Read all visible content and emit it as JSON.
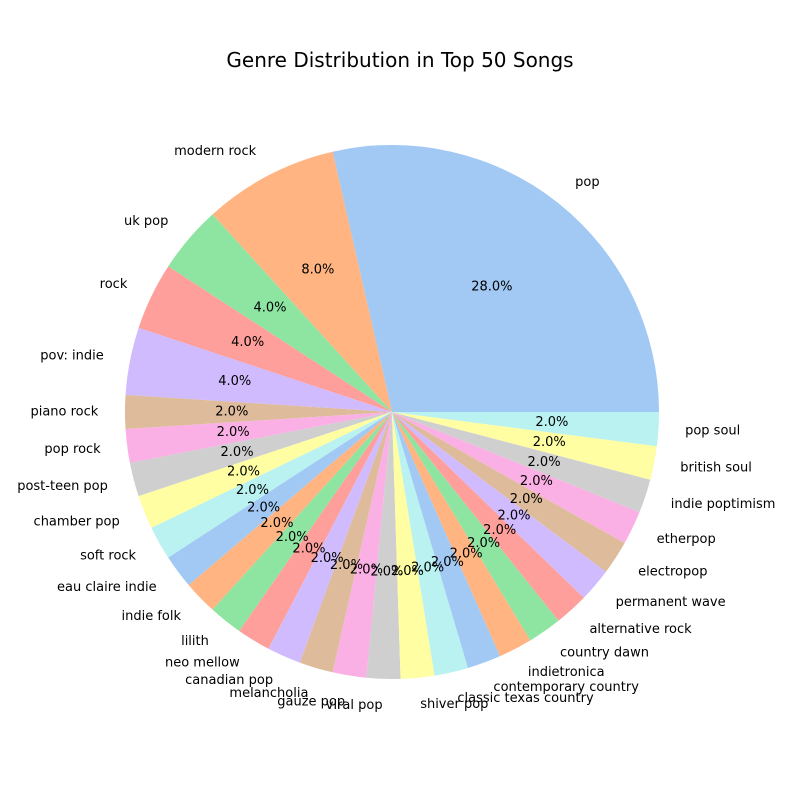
{
  "chart_data": {
    "type": "pie",
    "title": "Genre Distribution in Top 50 Songs",
    "start_angle_deg": 0,
    "direction": "counterclockwise",
    "slices": [
      {
        "label": "pop",
        "value": 28.0,
        "pct_label": "28.0%",
        "color": "#a1c9f4"
      },
      {
        "label": "modern rock",
        "value": 8.0,
        "pct_label": "8.0%",
        "color": "#ffb482"
      },
      {
        "label": "uk pop",
        "value": 4.0,
        "pct_label": "4.0%",
        "color": "#8de5a1"
      },
      {
        "label": "rock",
        "value": 4.0,
        "pct_label": "4.0%",
        "color": "#ff9f9b"
      },
      {
        "label": "pov: indie",
        "value": 4.0,
        "pct_label": "4.0%",
        "color": "#d0bbff"
      },
      {
        "label": "piano rock",
        "value": 2.0,
        "pct_label": "2.0%",
        "color": "#debb9b"
      },
      {
        "label": "pop rock",
        "value": 2.0,
        "pct_label": "2.0%",
        "color": "#fab0e4"
      },
      {
        "label": "post-teen pop",
        "value": 2.0,
        "pct_label": "2.0%",
        "color": "#cfcfcf"
      },
      {
        "label": "chamber pop",
        "value": 2.0,
        "pct_label": "2.0%",
        "color": "#fffea3"
      },
      {
        "label": "soft rock",
        "value": 2.0,
        "pct_label": "2.0%",
        "color": "#b9f2f0"
      },
      {
        "label": "eau claire indie",
        "value": 2.0,
        "pct_label": "2.0%",
        "color": "#a1c9f4"
      },
      {
        "label": "indie folk",
        "value": 2.0,
        "pct_label": "2.0%",
        "color": "#ffb482"
      },
      {
        "label": "lilith",
        "value": 2.0,
        "pct_label": "2.0%",
        "color": "#8de5a1"
      },
      {
        "label": "neo mellow",
        "value": 2.0,
        "pct_label": "2.0%",
        "color": "#ff9f9b"
      },
      {
        "label": "canadian pop",
        "value": 2.0,
        "pct_label": "2.0%",
        "color": "#d0bbff"
      },
      {
        "label": "melancholia",
        "value": 2.0,
        "pct_label": "2.0%",
        "color": "#debb9b"
      },
      {
        "label": "gauze pop",
        "value": 2.0,
        "pct_label": "2.0%",
        "color": "#fab0e4"
      },
      {
        "label": "viral pop",
        "value": 2.0,
        "pct_label": "2.0%",
        "color": "#cfcfcf"
      },
      {
        "label": "shiver pop",
        "value": 2.0,
        "pct_label": "2.0%",
        "color": "#fffea3"
      },
      {
        "label": "classic texas country",
        "value": 2.0,
        "pct_label": "2.0%",
        "color": "#b9f2f0"
      },
      {
        "label": "contemporary country",
        "value": 2.0,
        "pct_label": "2.0%",
        "color": "#a1c9f4"
      },
      {
        "label": "indietronica",
        "value": 2.0,
        "pct_label": "2.0%",
        "color": "#ffb482"
      },
      {
        "label": "country dawn",
        "value": 2.0,
        "pct_label": "2.0%",
        "color": "#8de5a1"
      },
      {
        "label": "alternative rock",
        "value": 2.0,
        "pct_label": "2.0%",
        "color": "#ff9f9b"
      },
      {
        "label": "permanent wave",
        "value": 2.0,
        "pct_label": "2.0%",
        "color": "#d0bbff"
      },
      {
        "label": "electropop",
        "value": 2.0,
        "pct_label": "2.0%",
        "color": "#debb9b"
      },
      {
        "label": "etherpop",
        "value": 2.0,
        "pct_label": "2.0%",
        "color": "#fab0e4"
      },
      {
        "label": "indie poptimism",
        "value": 2.0,
        "pct_label": "2.0%",
        "color": "#cfcfcf"
      },
      {
        "label": "british soul",
        "value": 2.0,
        "pct_label": "2.0%",
        "color": "#fffea3"
      },
      {
        "label": "pop soul",
        "value": 2.0,
        "pct_label": "2.0%",
        "color": "#b9f2f0"
      }
    ]
  }
}
